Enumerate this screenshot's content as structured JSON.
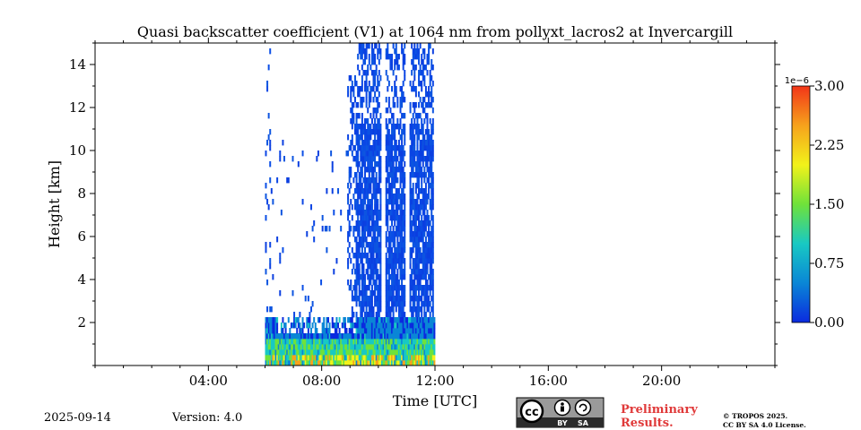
{
  "chart_data": {
    "type": "heatmap",
    "title": "Quasi backscatter coefficient (V1) at 1064 nm from pollyxt_lacros2 at Invercargill",
    "xlabel": "Time [UTC]",
    "ylabel": "Height [km]",
    "xlim": [
      0,
      24
    ],
    "ylim": [
      0,
      15
    ],
    "x_ticks": [
      {
        "value": 4,
        "label": "04:00"
      },
      {
        "value": 8,
        "label": "08:00"
      },
      {
        "value": 12,
        "label": "12:00"
      },
      {
        "value": 16,
        "label": "16:00"
      },
      {
        "value": 20,
        "label": "20:00"
      }
    ],
    "y_ticks": [
      {
        "value": 2,
        "label": "2"
      },
      {
        "value": 4,
        "label": "4"
      },
      {
        "value": 6,
        "label": "6"
      },
      {
        "value": 8,
        "label": "8"
      },
      {
        "value": 10,
        "label": "10"
      },
      {
        "value": 12,
        "label": "12"
      },
      {
        "value": 14,
        "label": "14"
      }
    ],
    "colorbar": {
      "range": [
        0,
        3e-06
      ],
      "multiplier_label": "1e−6",
      "ticks": [
        {
          "value": 0.0,
          "label": "0.00"
        },
        {
          "value": 0.75,
          "label": "0.75"
        },
        {
          "value": 1.5,
          "label": "1.50"
        },
        {
          "value": 2.25,
          "label": "2.25"
        },
        {
          "value": 3.0,
          "label": "3.00"
        }
      ],
      "colormap": [
        "#0b2adf",
        "#0a86d6",
        "#18c9c3",
        "#6fe23a",
        "#f2f21a",
        "#f6a21c",
        "#f23518"
      ]
    },
    "data_extent": {
      "time_start": 6.0,
      "time_end": 12.0
    },
    "segments": [
      {
        "t0": 6.0,
        "t1": 6.15,
        "ztop": 15.0,
        "fill": "scattered"
      },
      {
        "t0": 6.15,
        "t1": 8.9,
        "ztop": 10.5,
        "fill": "sparse"
      },
      {
        "t0": 8.9,
        "t1": 9.2,
        "ztop": 13.5,
        "fill": "partial"
      },
      {
        "t0": 9.2,
        "t1": 10.1,
        "ztop": 15.0,
        "fill": "dense"
      },
      {
        "t0": 10.1,
        "t1": 10.25,
        "ztop": 2.0,
        "fill": "gap"
      },
      {
        "t0": 10.25,
        "t1": 10.95,
        "ztop": 15.0,
        "fill": "dense"
      },
      {
        "t0": 10.95,
        "t1": 11.1,
        "ztop": 2.0,
        "fill": "gap"
      },
      {
        "t0": 11.1,
        "t1": 11.95,
        "ztop": 15.0,
        "fill": "dense"
      }
    ],
    "boundary_layer": {
      "top_km": 2.0,
      "value_range": [
        0.3,
        3.0
      ]
    }
  },
  "footer": {
    "date": "2025-09-14",
    "version": "Version: 4.0",
    "license_badge": {
      "cc": "cc",
      "by": "BY",
      "sa": "SA"
    },
    "preliminary": [
      "Preliminary",
      "Results."
    ],
    "copyright": [
      "© TROPOS 2025.",
      "CC BY SA 4.0 License."
    ],
    "colors": {
      "preliminary": "#e03a3a",
      "badge_bg": "#9a9a9a",
      "badge_dark": "#2b2b2b"
    }
  }
}
